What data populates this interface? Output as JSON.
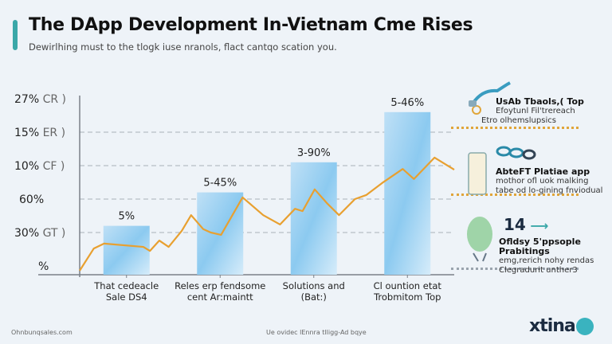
{
  "header": {
    "title": "The DApp Development In-Vietnam Cme Rises",
    "subtitle": "Dewirlhing must to the tlogk iuse nranols, flact cantqo scation you."
  },
  "chart_data": {
    "type": "bar",
    "y_tick_labels": [
      {
        "label": "%",
        "suffix": "",
        "level": 0
      },
      {
        "label": "30%",
        "suffix": "GT )",
        "level": 1
      },
      {
        "label": "60%",
        "suffix": "",
        "level": 2
      },
      {
        "label": "10%",
        "suffix": "CF )",
        "level": 3
      },
      {
        "label": "15%",
        "suffix": "ER )",
        "level": 4
      },
      {
        "label": "27%",
        "suffix": "CR )",
        "level": 5
      }
    ],
    "categories": [
      [
        "That cedeacle",
        "Sale DS4"
      ],
      [
        "Reles erp fendsome",
        "cent Ar:maintt"
      ],
      [
        "Solutions and",
        "(Bat:)"
      ],
      [
        "Cl ountion etat",
        "Trobmitom Top"
      ]
    ],
    "series": [
      {
        "type": "bar",
        "values": [
          1.2,
          2.2,
          3.1,
          4.6
        ],
        "data_labels": [
          "5%",
          "5-45%",
          "3-90%",
          "5-46%"
        ],
        "color": "#8ccaf0"
      }
    ],
    "line": {
      "color": "#e8a030",
      "points": [
        [
          0,
          -0.14
        ],
        [
          0.15,
          0.52
        ],
        [
          0.26,
          0.67
        ],
        [
          0.68,
          0.57
        ],
        [
          0.75,
          0.45
        ],
        [
          0.85,
          0.76
        ],
        [
          0.95,
          0.57
        ],
        [
          1.09,
          1.05
        ],
        [
          1.19,
          1.52
        ],
        [
          1.32,
          1.1
        ],
        [
          1.4,
          1.0
        ],
        [
          1.51,
          0.93
        ],
        [
          1.74,
          2.05
        ],
        [
          1.96,
          1.52
        ],
        [
          2.14,
          1.24
        ],
        [
          2.3,
          1.71
        ],
        [
          2.38,
          1.64
        ],
        [
          2.51,
          2.29
        ],
        [
          2.64,
          1.88
        ],
        [
          2.77,
          1.52
        ],
        [
          2.94,
          2.0
        ],
        [
          3.06,
          2.12
        ],
        [
          3.23,
          2.48
        ],
        [
          3.45,
          2.9
        ],
        [
          3.57,
          2.6
        ],
        [
          3.79,
          3.24
        ],
        [
          4.0,
          2.88
        ]
      ]
    },
    "grid": true
  },
  "side": {
    "items": [
      {
        "icon": "usb-cable-icon",
        "title": "UsAb Tbaols,( Top",
        "lines": [
          "Efoytunl Fil'trereach",
          "Etro olhemslupsics"
        ]
      },
      {
        "icon": "phone-app-icon",
        "title": "AbteFT Platiae app",
        "lines": [
          "mothor ofl uok malking",
          "tabe od lo-gining fnviodual"
        ]
      },
      {
        "icon": "people-bubble-icon",
        "title": "Ofldsy 5'ppsople Prabitings",
        "badge": "14",
        "lines": [
          "emg,rerich nohy rendas",
          "Clegradurit unther3"
        ]
      }
    ]
  },
  "footer": {
    "left": "Ohnbunqsales.com",
    "center": "Ue ovidec lEnnra tlligg-Ad bqye",
    "logo": "xtina"
  }
}
